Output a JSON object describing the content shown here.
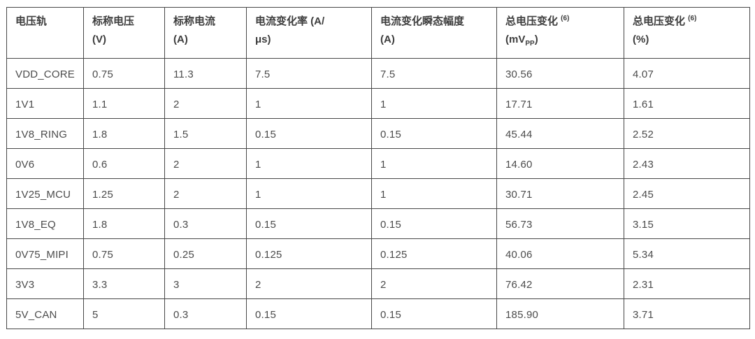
{
  "colors": {
    "border": "#474747",
    "header_text": "#3d3d3d",
    "cell_text": "#4c4c4c",
    "background": "#ffffff"
  },
  "table": {
    "columns": [
      {
        "id": "rail",
        "lines": [
          [
            {
              "t": "电压轨"
            }
          ]
        ]
      },
      {
        "id": "nominal-voltage",
        "lines": [
          [
            {
              "t": "标称电压"
            }
          ],
          [
            {
              "t": "(V)"
            }
          ]
        ]
      },
      {
        "id": "nominal-current",
        "lines": [
          [
            {
              "t": "标称电流"
            }
          ],
          [
            {
              "t": "(A)"
            }
          ]
        ]
      },
      {
        "id": "current-slew-rate",
        "lines": [
          [
            {
              "t": "电流变化率 (A/"
            }
          ],
          [
            {
              "t": "μs)"
            }
          ]
        ]
      },
      {
        "id": "current-transient-amplitude",
        "lines": [
          [
            {
              "t": "电流变化瞬态幅度"
            }
          ],
          [
            {
              "t": "(A)"
            }
          ]
        ]
      },
      {
        "id": "total-voltage-change-mvpp",
        "lines": [
          [
            {
              "t": "总电压变化 "
            },
            {
              "sup": "(6)"
            }
          ],
          [
            {
              "t": "(mV"
            },
            {
              "sub": "PP"
            },
            {
              "t": ")"
            }
          ]
        ]
      },
      {
        "id": "total-voltage-change-pct",
        "lines": [
          [
            {
              "t": "总电压变化 "
            },
            {
              "sup": "(6)"
            }
          ],
          [
            {
              "t": "(%)"
            }
          ]
        ]
      }
    ],
    "rows": [
      [
        "VDD_CORE",
        "0.75",
        "11.3",
        "7.5",
        "7.5",
        "30.56",
        "4.07"
      ],
      [
        "1V1",
        "1.1",
        "2",
        "1",
        "1",
        "17.71",
        "1.61"
      ],
      [
        "1V8_RING",
        "1.8",
        "1.5",
        "0.15",
        "0.15",
        "45.44",
        "2.52"
      ],
      [
        "0V6",
        "0.6",
        "2",
        "1",
        "1",
        "14.60",
        "2.43"
      ],
      [
        "1V25_MCU",
        "1.25",
        "2",
        "1",
        "1",
        "30.71",
        "2.45"
      ],
      [
        "1V8_EQ",
        "1.8",
        "0.3",
        "0.15",
        "0.15",
        "56.73",
        "3.15"
      ],
      [
        "0V75_MIPI",
        "0.75",
        "0.25",
        "0.125",
        "0.125",
        "40.06",
        "5.34"
      ],
      [
        "3V3",
        "3.3",
        "3",
        "2",
        "2",
        "76.42",
        "2.31"
      ],
      [
        "5V_CAN",
        "5",
        "0.3",
        "0.15",
        "0.15",
        "185.90",
        "3.71"
      ]
    ]
  }
}
